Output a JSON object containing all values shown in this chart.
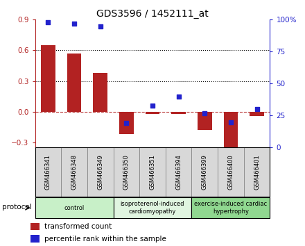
{
  "title": "GDS3596 / 1452111_at",
  "samples": [
    "GSM466341",
    "GSM466348",
    "GSM466349",
    "GSM466350",
    "GSM466351",
    "GSM466394",
    "GSM466399",
    "GSM466400",
    "GSM466401"
  ],
  "bar_values": [
    0.65,
    0.57,
    0.38,
    -0.22,
    -0.02,
    -0.02,
    -0.18,
    -0.37,
    -0.04
  ],
  "dot_values": [
    98,
    97,
    95,
    19,
    33,
    40,
    27,
    20,
    30
  ],
  "bar_color": "#B22222",
  "dot_color": "#2222CC",
  "ylim_left": [
    -0.35,
    0.9
  ],
  "ylim_right": [
    0,
    100
  ],
  "yticks_left": [
    -0.3,
    0.0,
    0.3,
    0.6,
    0.9
  ],
  "yticks_right": [
    0,
    25,
    50,
    75,
    100
  ],
  "ytick_labels_right": [
    "0",
    "25",
    "50",
    "75",
    "100%"
  ],
  "hlines_dotted": [
    0.3,
    0.6
  ],
  "hline_dashed": 0.0,
  "groups": [
    {
      "label": "control",
      "start": 0,
      "end": 3,
      "color": "#c8f0c8"
    },
    {
      "label": "isoproterenol-induced\ncardiomyopathy",
      "start": 3,
      "end": 6,
      "color": "#e0f5e0"
    },
    {
      "label": "exercise-induced cardiac\nhypertrophy",
      "start": 6,
      "end": 9,
      "color": "#90d890"
    }
  ],
  "protocol_label": "protocol",
  "legend_bar_label": "transformed count",
  "legend_dot_label": "percentile rank within the sample",
  "bar_width": 0.55,
  "sample_box_color": "#d8d8d8",
  "sample_box_edge_color": "#888888"
}
